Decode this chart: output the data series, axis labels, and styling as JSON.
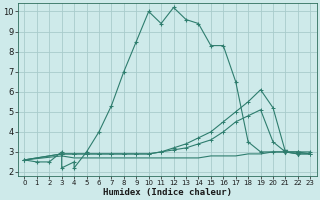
{
  "xlabel": "Humidex (Indice chaleur)",
  "bg_color": "#ceeaea",
  "grid_color": "#a8cccc",
  "line_color": "#2e7d6e",
  "xlim": [
    -0.5,
    23.5
  ],
  "ylim": [
    1.8,
    10.4
  ],
  "yticks": [
    2,
    3,
    4,
    5,
    6,
    7,
    8,
    9,
    10
  ],
  "xticks": [
    0,
    1,
    2,
    3,
    4,
    5,
    6,
    7,
    8,
    9,
    10,
    11,
    12,
    13,
    14,
    15,
    16,
    17,
    18,
    19,
    20,
    21,
    22,
    23
  ],
  "series_main_x": [
    0,
    1,
    2,
    3,
    3,
    4,
    4,
    5,
    6,
    7,
    8,
    9,
    10,
    11,
    12,
    13,
    14,
    15,
    16,
    17,
    18,
    19,
    20,
    21,
    22,
    23
  ],
  "series_main_y": [
    2.6,
    2.5,
    2.5,
    3.0,
    2.2,
    2.5,
    2.2,
    3.0,
    4.0,
    5.3,
    7.0,
    8.5,
    10.0,
    9.4,
    10.2,
    9.6,
    9.4,
    8.3,
    8.3,
    6.5,
    3.5,
    3.0,
    3.0,
    3.0,
    3.0,
    3.0
  ],
  "series_line2_x": [
    0,
    3,
    4,
    5,
    6,
    7,
    8,
    9,
    10,
    11,
    12,
    13,
    14,
    15,
    16,
    17,
    18,
    19,
    20,
    21,
    22,
    23
  ],
  "series_line2_y": [
    2.6,
    2.9,
    2.9,
    2.9,
    2.9,
    2.9,
    2.9,
    2.9,
    2.9,
    3.0,
    3.2,
    3.4,
    3.7,
    4.0,
    4.5,
    5.0,
    5.5,
    6.1,
    5.2,
    3.0,
    3.0,
    2.9
  ],
  "series_line3_x": [
    0,
    3,
    4,
    5,
    6,
    7,
    8,
    9,
    10,
    11,
    12,
    13,
    14,
    15,
    16,
    17,
    18,
    19,
    20,
    21,
    22,
    23
  ],
  "series_line3_y": [
    2.6,
    2.9,
    2.9,
    2.9,
    2.9,
    2.9,
    2.9,
    2.9,
    2.9,
    3.0,
    3.1,
    3.2,
    3.4,
    3.6,
    4.0,
    4.5,
    4.8,
    5.1,
    3.5,
    3.0,
    2.9,
    2.9
  ],
  "series_flat_x": [
    0,
    3,
    4,
    5,
    6,
    7,
    8,
    9,
    10,
    11,
    12,
    13,
    14,
    15,
    16,
    17,
    18,
    19,
    20,
    21,
    22,
    23
  ],
  "series_flat_y": [
    2.6,
    2.8,
    2.7,
    2.7,
    2.7,
    2.7,
    2.7,
    2.7,
    2.7,
    2.7,
    2.7,
    2.7,
    2.7,
    2.8,
    2.8,
    2.8,
    2.9,
    2.9,
    3.0,
    3.0,
    2.9,
    2.9
  ],
  "linewidth": 0.8
}
